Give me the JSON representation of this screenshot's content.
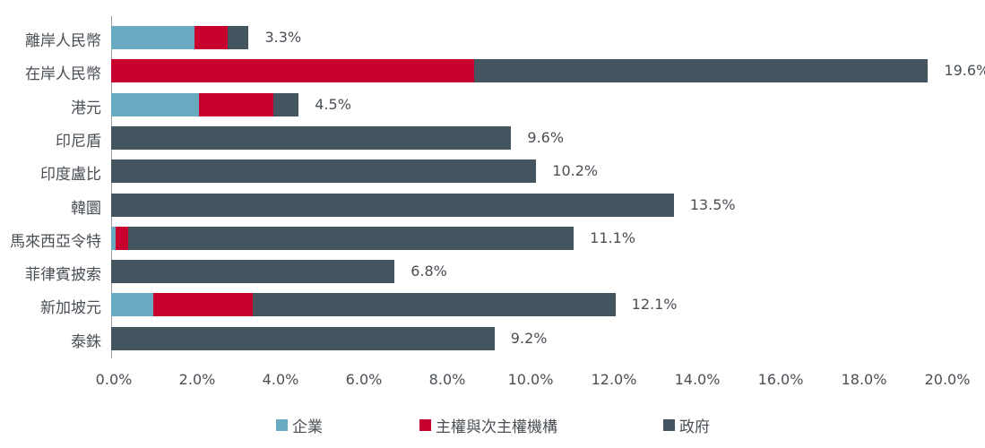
{
  "chart_data": {
    "type": "bar",
    "orientation": "horizontal",
    "stacked": true,
    "title": "",
    "xlabel": "",
    "ylabel": "",
    "xlim": [
      0,
      20
    ],
    "x_ticks": [
      "0.0%",
      "2.0%",
      "4.0%",
      "6.0%",
      "8.0%",
      "10.0%",
      "12.0%",
      "14.0%",
      "16.0%",
      "18.0%",
      "20.0%"
    ],
    "categories": [
      "離岸人民幣",
      "在岸人民幣",
      "港元",
      "印尼盾",
      "印度盧比",
      "韓圜",
      "馬來西亞令特",
      "菲律賓披索",
      "新加坡元",
      "泰銖"
    ],
    "series": [
      {
        "name": "企業",
        "color": "#6aaac0",
        "values": [
          2.0,
          0,
          2.1,
          0,
          0,
          0,
          0.1,
          0,
          1.0,
          0
        ]
      },
      {
        "name": "主權與次主權機構",
        "color": "#c8002e",
        "values": [
          0.8,
          8.7,
          1.8,
          0,
          0,
          0,
          0.3,
          0,
          2.4,
          0
        ]
      },
      {
        "name": "政府",
        "color": "#44555f",
        "values": [
          0.5,
          10.9,
          0.6,
          9.6,
          10.2,
          13.5,
          10.7,
          6.8,
          8.7,
          9.2
        ]
      }
    ],
    "totals": [
      "3.3%",
      "19.6%",
      "4.5%",
      "9.6%",
      "10.2%",
      "13.5%",
      "11.1%",
      "6.8%",
      "12.1%",
      "9.2%"
    ],
    "legend_position": "bottom",
    "grid": false
  },
  "legend": [
    "企業",
    "主權與次主權機構",
    "政府"
  ]
}
